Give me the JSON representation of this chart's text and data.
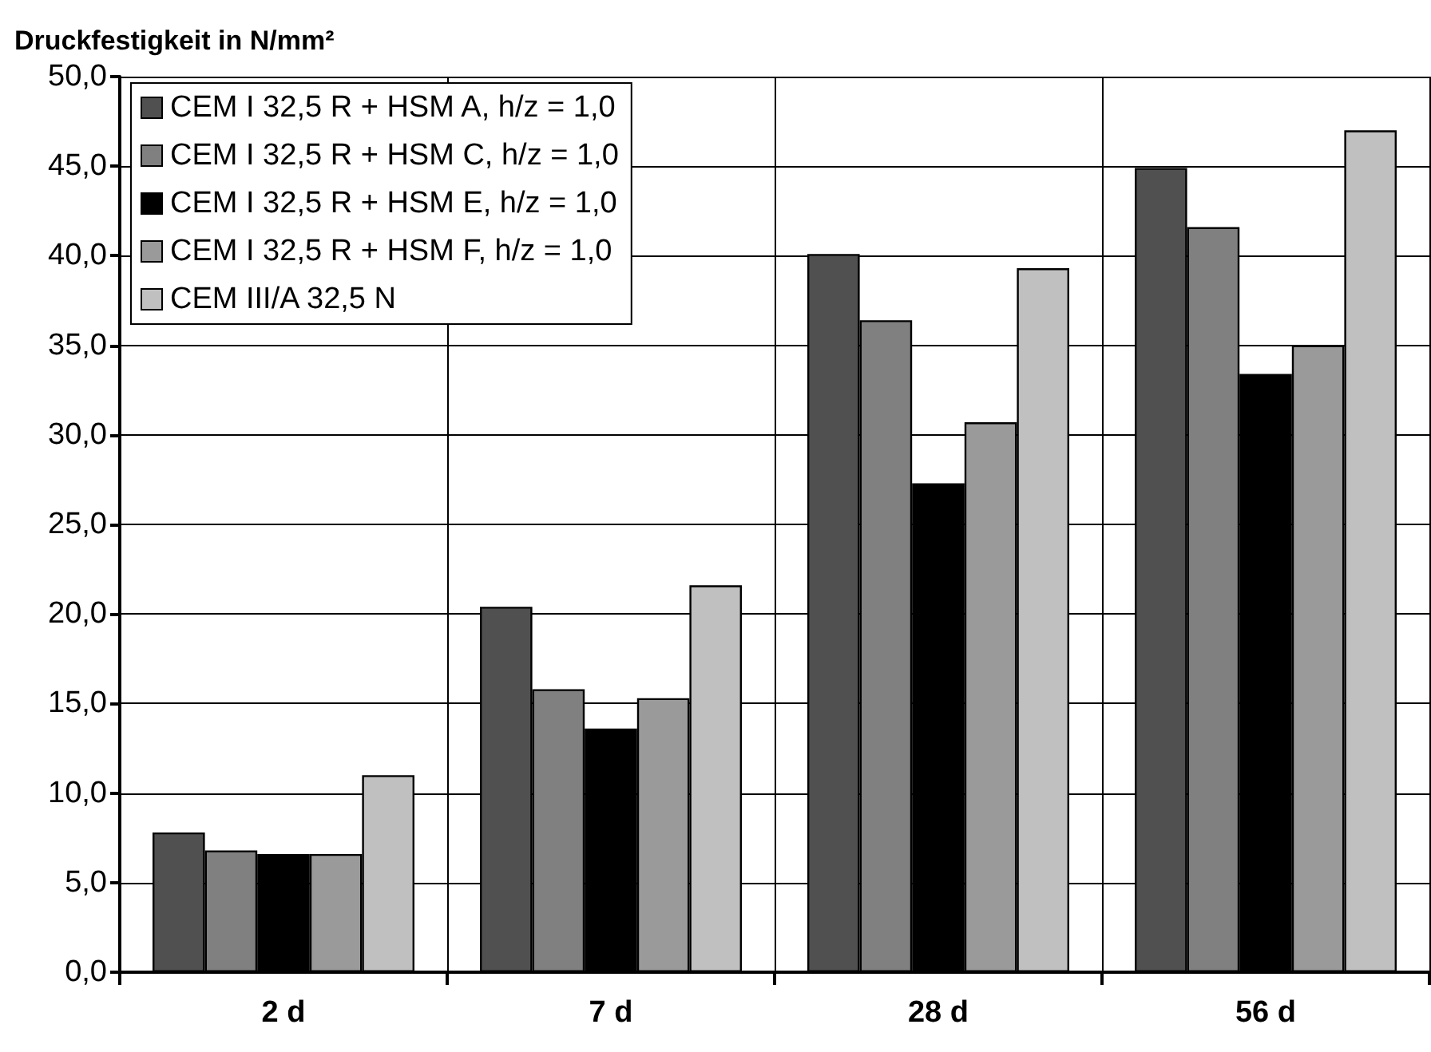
{
  "chart_data": {
    "type": "bar",
    "ylabel": "Druckfestigkeit in N/mm²",
    "categories": [
      "2 d",
      "7 d",
      "28 d",
      "56 d"
    ],
    "series": [
      {
        "name": "CEM I 32,5 R + HSM A, h/z = 1,0",
        "color": "#505050",
        "values": [
          7.8,
          20.4,
          40.1,
          44.9
        ]
      },
      {
        "name": "CEM I 32,5 R + HSM C, h/z = 1,0",
        "color": "#808080",
        "values": [
          6.8,
          15.8,
          36.4,
          41.6
        ]
      },
      {
        "name": "CEM I 32,5 R + HSM E, h/z = 1,0",
        "color": "#000000",
        "values": [
          6.6,
          13.6,
          27.3,
          33.4
        ]
      },
      {
        "name": "CEM I 32,5 R + HSM F, h/z = 1,0",
        "color": "#9a9a9a",
        "values": [
          6.6,
          15.3,
          30.7,
          35.0
        ]
      },
      {
        "name": "CEM III/A 32,5 N",
        "color": "#c0c0c0",
        "values": [
          11.0,
          21.6,
          39.3,
          47.0
        ]
      }
    ],
    "ylim": [
      0,
      50
    ],
    "yticks": [
      {
        "value": 0,
        "label": "0,0"
      },
      {
        "value": 5,
        "label": "5,0"
      },
      {
        "value": 10,
        "label": "10,0"
      },
      {
        "value": 15,
        "label": "15,0"
      },
      {
        "value": 20,
        "label": "20,0"
      },
      {
        "value": 25,
        "label": "25,0"
      },
      {
        "value": 30,
        "label": "30,0"
      },
      {
        "value": 35,
        "label": "35,0"
      },
      {
        "value": 40,
        "label": "40,0"
      },
      {
        "value": 45,
        "label": "45,0"
      },
      {
        "value": 50,
        "label": "50,0"
      }
    ],
    "grid": true,
    "legend": "top left"
  }
}
